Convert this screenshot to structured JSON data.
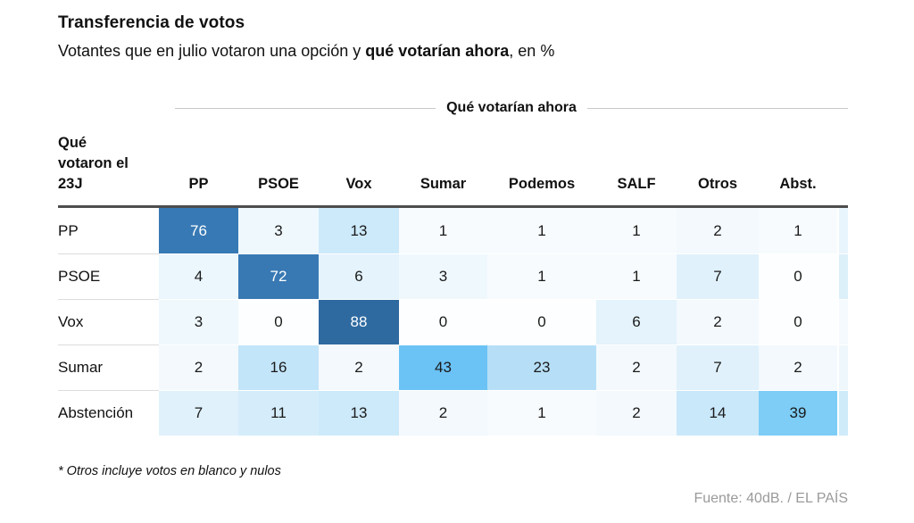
{
  "header": {
    "title": "Transferencia de votos",
    "subtitle_prefix": "Votantes que en julio votaron una opción y ",
    "subtitle_bold": "qué votarían ahora",
    "subtitle_suffix": ", en %"
  },
  "chart_data": {
    "type": "heatmap",
    "title": "Transferencia de votos",
    "subtitle": "Votantes que en julio votaron una opción y qué votarían ahora, en %",
    "unit": "%",
    "columns_group_label": "Qué votarían ahora",
    "rows_group_label": "Qué votaron el 23J",
    "columns": [
      "PP",
      "PSOE",
      "Vox",
      "Sumar",
      "Podemos",
      "SALF",
      "Otros",
      "Abst."
    ],
    "rows": [
      "PP",
      "PSOE",
      "Vox",
      "Sumar",
      "Abstención"
    ],
    "values": [
      [
        76,
        3,
        13,
        1,
        1,
        1,
        2,
        1
      ],
      [
        4,
        72,
        6,
        3,
        1,
        1,
        7,
        0
      ],
      [
        3,
        0,
        88,
        0,
        0,
        6,
        2,
        0
      ],
      [
        2,
        16,
        2,
        43,
        23,
        2,
        7,
        2
      ],
      [
        7,
        11,
        13,
        2,
        1,
        2,
        14,
        39
      ]
    ],
    "legend": "none",
    "grid": "off"
  },
  "colors": {
    "cell_colors": {
      "0": "#FCFEFF",
      "1": "#F7FBFE",
      "2": "#F3F9FD",
      "3": "#EFF8FD",
      "4": "#EBF6FD",
      "6": "#E4F3FC",
      "7": "#E0F1FB",
      "11": "#D5EDFA",
      "13": "#CDEAFA",
      "14": "#C9E8FA",
      "16": "#C3E5F9",
      "23": "#B6DFF7",
      "39": "#7ECDF7",
      "43": "#6BC2F5",
      "72": "#3879B4",
      "76": "#3779B4",
      "88": "#2E6AA0"
    },
    "edge_strip": [
      "#E9F5FC",
      "#DCF0FA",
      "#F4FAFD",
      "#EEF7FC",
      "#CFEBFA"
    ],
    "text_dark": "#1a1a1a",
    "text_light": "#ffffff",
    "light_text_min": 70,
    "header_rule": "#4d4d4d",
    "band_rule": "#c9c9c9",
    "source_gray": "#9a9a9a"
  },
  "footnote": "* Otros incluye votos en blanco y nulos",
  "source": "Fuente: 40dB. / EL PAÍS"
}
